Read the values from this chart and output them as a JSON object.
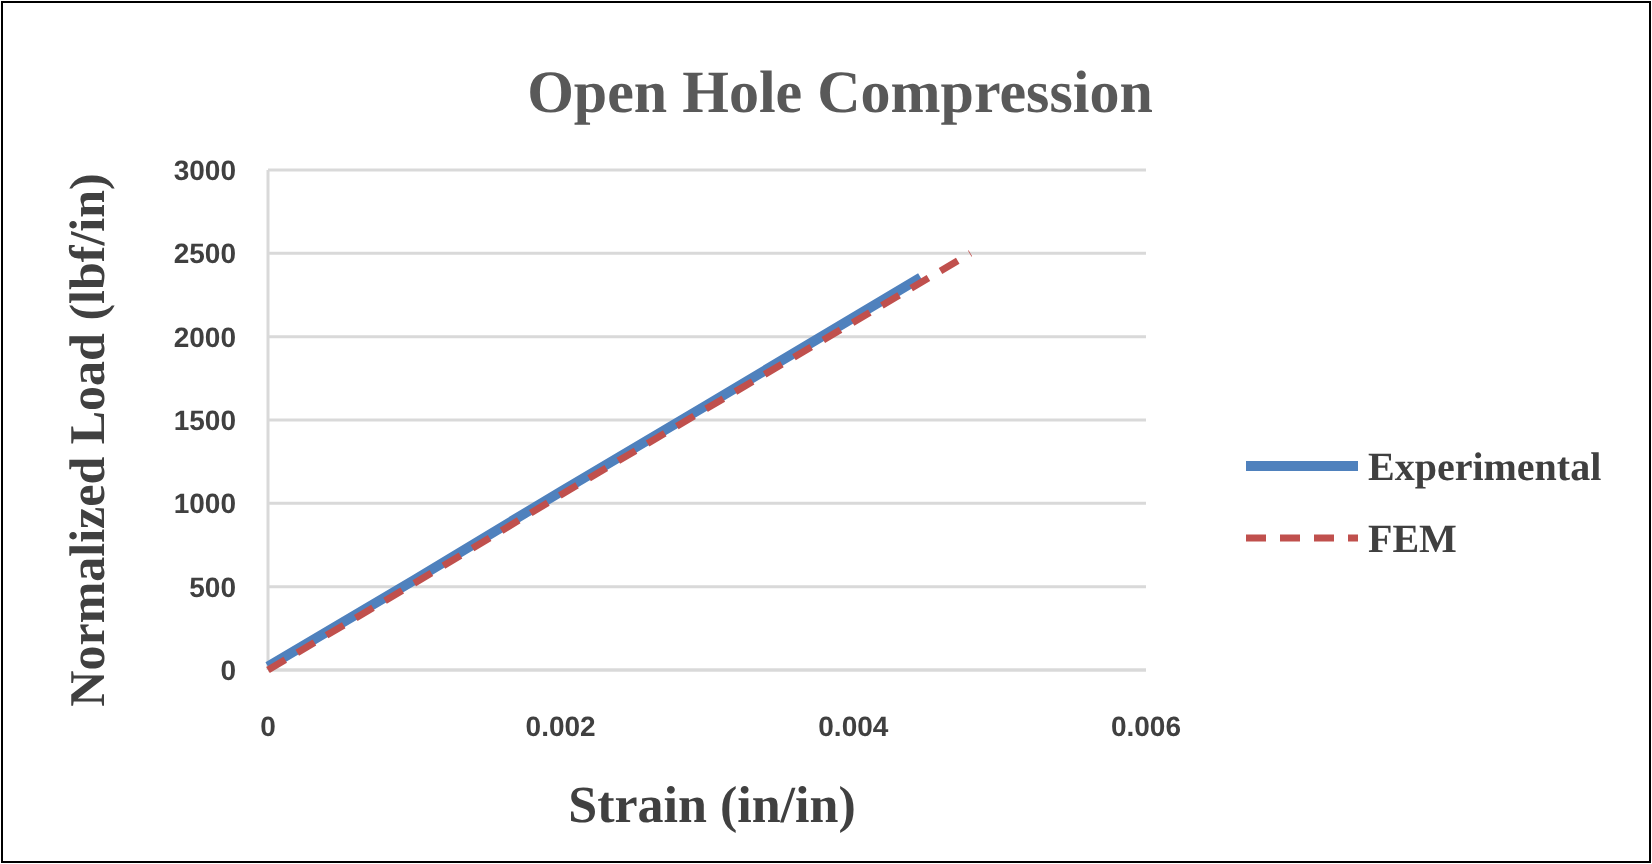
{
  "chart_data": {
    "type": "line",
    "title": "Open Hole Compression",
    "xlabel": "Strain  (in/in)",
    "ylabel": "Normalized Load (lbf/in)",
    "series": [
      {
        "name": "Experimental",
        "color": "#4f81bd",
        "line_style": "solid",
        "x": [
          0,
          0.001,
          0.002,
          0.003,
          0.00446
        ],
        "values": [
          20,
          540,
          1070,
          1590,
          2355
        ]
      },
      {
        "name": "FEM",
        "color": "#c0504d",
        "line_style": "dashed",
        "x": [
          0,
          0.001,
          0.002,
          0.003,
          0.0048
        ],
        "values": [
          0,
          520,
          1050,
          1570,
          2500
        ]
      }
    ],
    "xlim": [
      0,
      0.006
    ],
    "xticks": [
      0,
      0.002,
      0.004,
      0.006
    ],
    "ylim": [
      0,
      3000
    ],
    "yticks": [
      0,
      500,
      1000,
      1500,
      2000,
      2500,
      3000
    ],
    "grid": "y",
    "legend": "right",
    "marker": "none"
  }
}
